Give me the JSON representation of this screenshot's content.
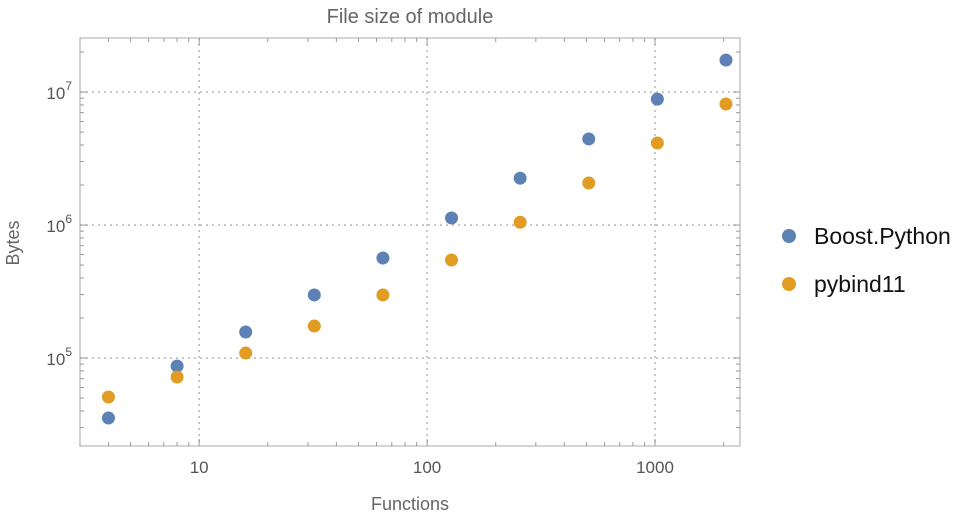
{
  "chart_data": {
    "type": "scatter",
    "title": "File size of module",
    "xlabel": "Functions",
    "ylabel": "Bytes",
    "xscale": "log",
    "yscale": "log",
    "xlim": [
      3,
      2360
    ],
    "ylim": [
      21800,
      25500000
    ],
    "x_ticks": [
      {
        "value": 10,
        "label": "10"
      },
      {
        "value": 100,
        "label": "100"
      },
      {
        "value": 1000,
        "label": "1000"
      }
    ],
    "y_ticks": [
      {
        "value": 100000,
        "base": "10",
        "exp": "5"
      },
      {
        "value": 1000000,
        "base": "10",
        "exp": "6"
      },
      {
        "value": 10000000,
        "base": "10",
        "exp": "7"
      }
    ],
    "grid": true,
    "grid_style": "dotted",
    "legend_position": "right",
    "x": [
      4,
      8,
      16,
      32,
      64,
      128,
      256,
      512,
      1024,
      2048
    ],
    "series": [
      {
        "name": "Boost.Python",
        "color": "#5E81B5",
        "values": [
          35400,
          87000,
          157000,
          298000,
          565000,
          1130000,
          2250000,
          4440000,
          8850000,
          17400000
        ]
      },
      {
        "name": "pybind11",
        "color": "#E19C24",
        "values": [
          50900,
          72000,
          109000,
          174000,
          298000,
          546000,
          1050000,
          2070000,
          4140000,
          8130000
        ]
      }
    ]
  }
}
